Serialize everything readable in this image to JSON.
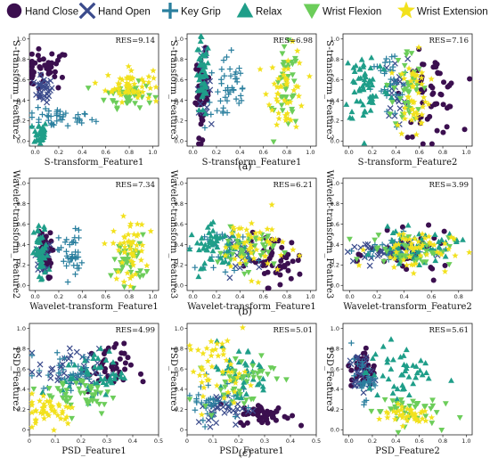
{
  "legend": [
    {
      "name": "Hand Close",
      "marker": "circle",
      "color": "#3b0f4f"
    },
    {
      "name": "Hand Open",
      "marker": "x",
      "color": "#3b4b8c"
    },
    {
      "name": "Key Grip",
      "marker": "plus",
      "color": "#2a7f9e"
    },
    {
      "name": "Relax",
      "marker": "triangle-up",
      "color": "#1f9e89"
    },
    {
      "name": "Wrist Flexion",
      "marker": "triangle-down",
      "color": "#6ccd5a"
    },
    {
      "name": "Wrist Extension",
      "marker": "star",
      "color": "#f2e11d"
    }
  ],
  "captions": [
    "(a)",
    "(b)",
    "(c)"
  ],
  "chart_data": [
    {
      "type": "scatter",
      "xlabel": "S-transform_Feature1",
      "ylabel": "S-transform_Feature2",
      "annotation": "RES=9.14",
      "xticks": [
        "0.0",
        "0.2",
        "0.4",
        "0.6",
        "0.8",
        "1.0"
      ],
      "yticks": [
        "0.0",
        "0.2",
        "0.4",
        "0.6",
        "0.8",
        "1.0"
      ],
      "xlim": [
        -0.05,
        1.05
      ],
      "ylim": [
        -0.05,
        1.05
      ],
      "clusters": [
        {
          "series": "Hand Close",
          "cx": [
            0.07,
            0.11
          ],
          "cy": [
            0.7,
            0.1
          ],
          "n": 45
        },
        {
          "series": "Hand Open",
          "cx": [
            0.07,
            0.04
          ],
          "cy": [
            0.5,
            0.06
          ],
          "n": 30
        },
        {
          "series": "Key Grip",
          "cx": [
            0.2,
            0.15
          ],
          "cy": [
            0.22,
            0.05
          ],
          "n": 40
        },
        {
          "series": "Relax",
          "cx": [
            0.04,
            0.03
          ],
          "cy": [
            0.08,
            0.06
          ],
          "n": 35
        },
        {
          "series": "Wrist Flexion",
          "cx": [
            0.8,
            0.1
          ],
          "cy": [
            0.45,
            0.06
          ],
          "n": 45
        },
        {
          "series": "Wrist Extension",
          "cx": [
            0.8,
            0.1
          ],
          "cy": [
            0.55,
            0.08
          ],
          "n": 55
        }
      ]
    },
    {
      "type": "scatter",
      "xlabel": "S-transform_Feature1",
      "ylabel": "S-transform_Feature3",
      "annotation": "RES=6.98",
      "xticks": [
        "0.0",
        "0.2",
        "0.4",
        "0.6",
        "0.8",
        "1.0"
      ],
      "yticks": [
        "0.0",
        "0.2",
        "0.4",
        "0.6",
        "0.8",
        "1.0"
      ],
      "xlim": [
        -0.05,
        1.05
      ],
      "ylim": [
        -0.05,
        1.05
      ],
      "clusters": [
        {
          "series": "Hand Close",
          "cx": [
            0.08,
            0.03
          ],
          "cy": [
            0.45,
            0.2
          ],
          "n": 45
        },
        {
          "series": "Hand Open",
          "cx": [
            0.09,
            0.03
          ],
          "cy": [
            0.55,
            0.15
          ],
          "n": 25
        },
        {
          "series": "Key Grip",
          "cx": [
            0.3,
            0.1
          ],
          "cy": [
            0.5,
            0.2
          ],
          "n": 45
        },
        {
          "series": "Relax",
          "cx": [
            0.08,
            0.03
          ],
          "cy": [
            0.6,
            0.2
          ],
          "n": 45
        },
        {
          "series": "Wrist Flexion",
          "cx": [
            0.8,
            0.05
          ],
          "cy": [
            0.5,
            0.2
          ],
          "n": 40
        },
        {
          "series": "Wrist Extension",
          "cx": [
            0.8,
            0.08
          ],
          "cy": [
            0.5,
            0.2
          ],
          "n": 45
        }
      ]
    },
    {
      "type": "scatter",
      "xlabel": "S-transform_Feature2",
      "ylabel": "S-transform_Feature3",
      "annotation": "RES=7.16",
      "xticks": [
        "0.0",
        "0.2",
        "0.4",
        "0.6",
        "0.8",
        "1.0"
      ],
      "yticks": [
        "0.0",
        "0.2",
        "0.4",
        "0.6",
        "0.8",
        "1.0"
      ],
      "xlim": [
        -0.05,
        1.05
      ],
      "ylim": [
        -0.05,
        1.05
      ],
      "clusters": [
        {
          "series": "Hand Close",
          "cx": [
            0.7,
            0.12
          ],
          "cy": [
            0.45,
            0.2
          ],
          "n": 55
        },
        {
          "series": "Hand Open",
          "cx": [
            0.4,
            0.05
          ],
          "cy": [
            0.5,
            0.15
          ],
          "n": 25
        },
        {
          "series": "Key Grip",
          "cx": [
            0.35,
            0.08
          ],
          "cy": [
            0.5,
            0.2
          ],
          "n": 35
        },
        {
          "series": "Relax",
          "cx": [
            0.15,
            0.1
          ],
          "cy": [
            0.55,
            0.2
          ],
          "n": 60
        },
        {
          "series": "Wrist Flexion",
          "cx": [
            0.5,
            0.06
          ],
          "cy": [
            0.5,
            0.2
          ],
          "n": 40
        },
        {
          "series": "Wrist Extension",
          "cx": [
            0.55,
            0.07
          ],
          "cy": [
            0.45,
            0.2
          ],
          "n": 45
        }
      ]
    },
    {
      "type": "scatter",
      "xlabel": "Wavelet-transform_Feature1",
      "ylabel": "Wavelet-transform_Feature2",
      "annotation": "RES=7.34",
      "xticks": [
        "0.0",
        "0.2",
        "0.4",
        "0.6",
        "0.8",
        "1.0"
      ],
      "yticks": [
        "0.0",
        "0.2",
        "0.4",
        "0.6",
        "0.8",
        "1.0"
      ],
      "xlim": [
        -0.05,
        1.05
      ],
      "ylim": [
        -0.05,
        1.05
      ],
      "clusters": [
        {
          "series": "Hand Close",
          "cx": [
            0.08,
            0.03
          ],
          "cy": [
            0.3,
            0.12
          ],
          "n": 40
        },
        {
          "series": "Hand Open",
          "cx": [
            0.06,
            0.03
          ],
          "cy": [
            0.3,
            0.1
          ],
          "n": 20
        },
        {
          "series": "Key Grip",
          "cx": [
            0.3,
            0.05
          ],
          "cy": [
            0.3,
            0.12
          ],
          "n": 40
        },
        {
          "series": "Relax",
          "cx": [
            0.05,
            0.03
          ],
          "cy": [
            0.3,
            0.15
          ],
          "n": 45
        },
        {
          "series": "Wrist Flexion",
          "cx": [
            0.8,
            0.07
          ],
          "cy": [
            0.25,
            0.12
          ],
          "n": 40
        },
        {
          "series": "Wrist Extension",
          "cx": [
            0.8,
            0.07
          ],
          "cy": [
            0.35,
            0.15
          ],
          "n": 50
        }
      ]
    },
    {
      "type": "scatter",
      "xlabel": "Wavelet-transform_Feature1",
      "ylabel": "Wavelet-transform_Feature3",
      "annotation": "RES=6.21",
      "xticks": [
        "0.0",
        "0.2",
        "0.4",
        "0.6",
        "0.8",
        "1.0"
      ],
      "yticks": [
        "0.0",
        "0.2",
        "0.4",
        "0.6",
        "0.8",
        "1.0"
      ],
      "xlim": [
        -0.05,
        1.05
      ],
      "ylim": [
        -0.05,
        1.05
      ],
      "clusters": [
        {
          "series": "Hand Close",
          "cx": [
            0.7,
            0.12
          ],
          "cy": [
            0.25,
            0.12
          ],
          "n": 50
        },
        {
          "series": "Hand Open",
          "cx": [
            0.45,
            0.1
          ],
          "cy": [
            0.3,
            0.08
          ],
          "n": 25
        },
        {
          "series": "Key Grip",
          "cx": [
            0.3,
            0.1
          ],
          "cy": [
            0.35,
            0.1
          ],
          "n": 35
        },
        {
          "series": "Relax",
          "cx": [
            0.2,
            0.12
          ],
          "cy": [
            0.38,
            0.1
          ],
          "n": 55
        },
        {
          "series": "Wrist Flexion",
          "cx": [
            0.45,
            0.12
          ],
          "cy": [
            0.35,
            0.1
          ],
          "n": 45
        },
        {
          "series": "Wrist Extension",
          "cx": [
            0.5,
            0.15
          ],
          "cy": [
            0.4,
            0.15
          ],
          "n": 50
        }
      ]
    },
    {
      "type": "scatter",
      "xlabel": "Wavelet-transform_Feature2",
      "ylabel": "Wavelet-transform_Feature3",
      "annotation": "RES=3.99",
      "xticks": [
        "0.0",
        "0.2",
        "0.4",
        "0.6",
        "0.8"
      ],
      "yticks": [
        "0.0",
        "0.2",
        "0.4",
        "0.6",
        "0.8",
        "1.0"
      ],
      "xlim": [
        -0.05,
        0.9
      ],
      "ylim": [
        -0.05,
        1.05
      ],
      "clusters": [
        {
          "series": "Hand Close",
          "cx": [
            0.45,
            0.15
          ],
          "cy": [
            0.3,
            0.1
          ],
          "n": 45
        },
        {
          "series": "Hand Open",
          "cx": [
            0.2,
            0.15
          ],
          "cy": [
            0.32,
            0.06
          ],
          "n": 30
        },
        {
          "series": "Key Grip",
          "cx": [
            0.35,
            0.15
          ],
          "cy": [
            0.35,
            0.07
          ],
          "n": 40
        },
        {
          "series": "Relax",
          "cx": [
            0.5,
            0.15
          ],
          "cy": [
            0.38,
            0.08
          ],
          "n": 50
        },
        {
          "series": "Wrist Flexion",
          "cx": [
            0.45,
            0.15
          ],
          "cy": [
            0.35,
            0.08
          ],
          "n": 40
        },
        {
          "series": "Wrist Extension",
          "cx": [
            0.45,
            0.15
          ],
          "cy": [
            0.35,
            0.1
          ],
          "n": 50
        }
      ]
    },
    {
      "type": "scatter",
      "xlabel": "PSD_Feature1",
      "ylabel": "PSD_Feature2",
      "annotation": "RES=4.99",
      "xticks": [
        "0",
        "0.1",
        "0.2",
        "0.3",
        "0.4",
        "0.5"
      ],
      "yticks": [
        "0",
        "0.2",
        "0.4",
        "0.6",
        "0.8",
        "1.0"
      ],
      "xlim": [
        0,
        0.5
      ],
      "ylim": [
        -0.05,
        1.05
      ],
      "clusters": [
        {
          "series": "Hand Close",
          "cx": [
            0.3,
            0.05
          ],
          "cy": [
            0.6,
            0.12
          ],
          "n": 45
        },
        {
          "series": "Hand Open",
          "cx": [
            0.15,
            0.06
          ],
          "cy": [
            0.6,
            0.1
          ],
          "n": 35
        },
        {
          "series": "Key Grip",
          "cx": [
            0.17,
            0.07
          ],
          "cy": [
            0.55,
            0.1
          ],
          "n": 45
        },
        {
          "series": "Relax",
          "cx": [
            0.25,
            0.06
          ],
          "cy": [
            0.55,
            0.12
          ],
          "n": 45
        },
        {
          "series": "Wrist Flexion",
          "cx": [
            0.2,
            0.07
          ],
          "cy": [
            0.35,
            0.1
          ],
          "n": 45
        },
        {
          "series": "Wrist Extension",
          "cx": [
            0.08,
            0.05
          ],
          "cy": [
            0.2,
            0.08
          ],
          "n": 45
        }
      ]
    },
    {
      "type": "scatter",
      "xlabel": "PSD_Feature1",
      "ylabel": "PSD_Feature3",
      "annotation": "RES=5.01",
      "xticks": [
        "0",
        "0.1",
        "0.2",
        "0.3",
        "0.4",
        "0.5"
      ],
      "yticks": [
        "0",
        "0.2",
        "0.4",
        "0.6",
        "0.8",
        "1.0"
      ],
      "xlim": [
        0,
        0.5
      ],
      "ylim": [
        -0.05,
        1.05
      ],
      "clusters": [
        {
          "series": "Hand Close",
          "cx": [
            0.3,
            0.05
          ],
          "cy": [
            0.15,
            0.05
          ],
          "n": 50
        },
        {
          "series": "Hand Open",
          "cx": [
            0.15,
            0.06
          ],
          "cy": [
            0.2,
            0.08
          ],
          "n": 35
        },
        {
          "series": "Key Grip",
          "cx": [
            0.1,
            0.05
          ],
          "cy": [
            0.3,
            0.1
          ],
          "n": 40
        },
        {
          "series": "Relax",
          "cx": [
            0.2,
            0.06
          ],
          "cy": [
            0.55,
            0.15
          ],
          "n": 40
        },
        {
          "series": "Wrist Flexion",
          "cx": [
            0.2,
            0.07
          ],
          "cy": [
            0.5,
            0.15
          ],
          "n": 45
        },
        {
          "series": "Wrist Extension",
          "cx": [
            0.12,
            0.06
          ],
          "cy": [
            0.6,
            0.15
          ],
          "n": 45
        }
      ]
    },
    {
      "type": "scatter",
      "xlabel": "PSD_Feature2",
      "ylabel": "PSD_Feature3",
      "annotation": "RES=5.61",
      "xticks": [
        "0.0",
        "0.2",
        "0.4",
        "0.6",
        "0.8",
        "1.0"
      ],
      "yticks": [
        "0.0",
        "0.2",
        "0.4",
        "0.6",
        "0.8",
        "1.0"
      ],
      "xlim": [
        -0.05,
        1.05
      ],
      "ylim": [
        -0.05,
        1.05
      ],
      "clusters": [
        {
          "series": "Hand Close",
          "cx": [
            0.12,
            0.05
          ],
          "cy": [
            0.6,
            0.1
          ],
          "n": 45
        },
        {
          "series": "Hand Open",
          "cx": [
            0.1,
            0.05
          ],
          "cy": [
            0.55,
            0.1
          ],
          "n": 30
        },
        {
          "series": "Key Grip",
          "cx": [
            0.12,
            0.05
          ],
          "cy": [
            0.5,
            0.1
          ],
          "n": 30
        },
        {
          "series": "Relax",
          "cx": [
            0.45,
            0.15
          ],
          "cy": [
            0.55,
            0.15
          ],
          "n": 45
        },
        {
          "series": "Wrist Flexion",
          "cx": [
            0.45,
            0.15
          ],
          "cy": [
            0.2,
            0.08
          ],
          "n": 40
        },
        {
          "series": "Wrist Extension",
          "cx": [
            0.5,
            0.12
          ],
          "cy": [
            0.15,
            0.05
          ],
          "n": 40
        }
      ]
    }
  ]
}
